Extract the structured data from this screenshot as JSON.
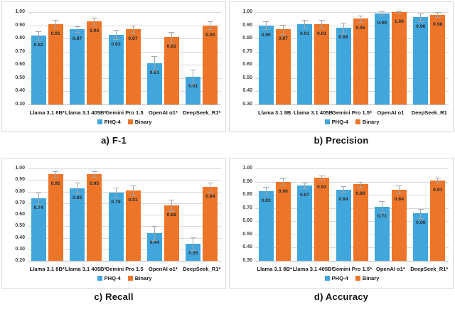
{
  "figure": {
    "layout": "2x2-grid-of-bar-charts"
  },
  "colors": {
    "phq4": "#41a6db",
    "binary": "#ec7529",
    "error_bar": "#a6a6a6",
    "gridline": "#d9d9d9",
    "axis_line": "#bfbfbf",
    "panel_border": "#d9d9d9",
    "value_label_text": "#2b2b2b",
    "tick_text": "#444444",
    "category_text": "#1a1a1a",
    "title_text": "#111111",
    "background": "#ffffff"
  },
  "legend": {
    "items": [
      {
        "label": "PHQ-4",
        "color": "#41a6db"
      },
      {
        "label": "Binary",
        "color": "#ec7529"
      }
    ],
    "position": "bottom"
  },
  "chart_data": [
    {
      "type": "bar",
      "title": "a) F-1",
      "categories": [
        "Llama 3.1 8B*",
        "Llama 3.1 405B*",
        "Gemini Pro 1.5",
        "OpenAI o1*",
        "DeepSeek_R1*"
      ],
      "series": [
        {
          "name": "PHQ-4",
          "color": "#41a6db",
          "values": [
            0.82,
            0.87,
            0.83,
            0.61,
            0.51
          ],
          "errors": [
            0.035,
            0.02,
            0.035,
            0.055,
            0.055
          ]
        },
        {
          "name": "Binary",
          "color": "#ec7529",
          "values": [
            0.91,
            0.93,
            0.87,
            0.81,
            0.9
          ],
          "errors": [
            0.03,
            0.025,
            0.03,
            0.04,
            0.03
          ]
        }
      ],
      "xlabel": "",
      "ylabel": "",
      "ylim": [
        0.3,
        1.0
      ],
      "ytick_step": 0.1,
      "grid": true,
      "legend_position": "bottom"
    },
    {
      "type": "bar",
      "title": "b) Precision",
      "categories": [
        "Llama 3.1 8B",
        "Llama 3.1 405B",
        "Gemini Pro 1.5*",
        "OpenAI o1",
        "DeepSeek_R1"
      ],
      "series": [
        {
          "name": "PHQ-4",
          "color": "#41a6db",
          "values": [
            0.9,
            0.91,
            0.88,
            0.99,
            0.96
          ],
          "errors": [
            0.03,
            0.03,
            0.04,
            0.015,
            0.03
          ]
        },
        {
          "name": "Binary",
          "color": "#ec7529",
          "values": [
            0.87,
            0.91,
            0.95,
            1.0,
            0.98
          ],
          "errors": [
            0.035,
            0.03,
            0.025,
            0.005,
            0.02
          ]
        }
      ],
      "xlabel": "",
      "ylabel": "",
      "ylim": [
        0.3,
        1.0
      ],
      "ytick_step": 0.1,
      "grid": true,
      "legend_position": "bottom"
    },
    {
      "type": "bar",
      "title": "c) Recall",
      "categories": [
        "Llama 3.1 8B*",
        "Llama 3.1 405B*",
        "Gemini Pro 1.5",
        "OpenAI o1*",
        "DeepSeek_R1*"
      ],
      "series": [
        {
          "name": "PHQ-4",
          "color": "#41a6db",
          "values": [
            0.74,
            0.83,
            0.79,
            0.44,
            0.35
          ],
          "errors": [
            0.05,
            0.045,
            0.045,
            0.06,
            0.055
          ]
        },
        {
          "name": "Binary",
          "color": "#ec7529",
          "values": [
            0.95,
            0.95,
            0.81,
            0.68,
            0.84
          ],
          "errors": [
            0.025,
            0.025,
            0.045,
            0.05,
            0.04
          ]
        }
      ],
      "xlabel": "",
      "ylabel": "",
      "ylim": [
        0.2,
        1.0
      ],
      "ytick_step": 0.1,
      "grid": true,
      "legend_position": "bottom"
    },
    {
      "type": "bar",
      "title": "d) Accuracy",
      "categories": [
        "Llama 3.1 8B*",
        "Llama 3.1 405B*",
        "Gemini Pro 1.5*",
        "OpenAI o1*",
        "DeepSeek_R1*"
      ],
      "series": [
        {
          "name": "PHQ-4",
          "color": "#41a6db",
          "values": [
            0.83,
            0.87,
            0.84,
            0.71,
            0.66
          ],
          "errors": [
            0.03,
            0.02,
            0.025,
            0.04,
            0.035
          ]
        },
        {
          "name": "Binary",
          "color": "#ec7529",
          "values": [
            0.9,
            0.93,
            0.88,
            0.84,
            0.91
          ],
          "errors": [
            0.025,
            0.015,
            0.02,
            0.03,
            0.02
          ]
        }
      ],
      "xlabel": "",
      "ylabel": "",
      "ylim": [
        0.3,
        1.0
      ],
      "ytick_step": 0.1,
      "grid": true,
      "legend_position": "bottom"
    }
  ]
}
